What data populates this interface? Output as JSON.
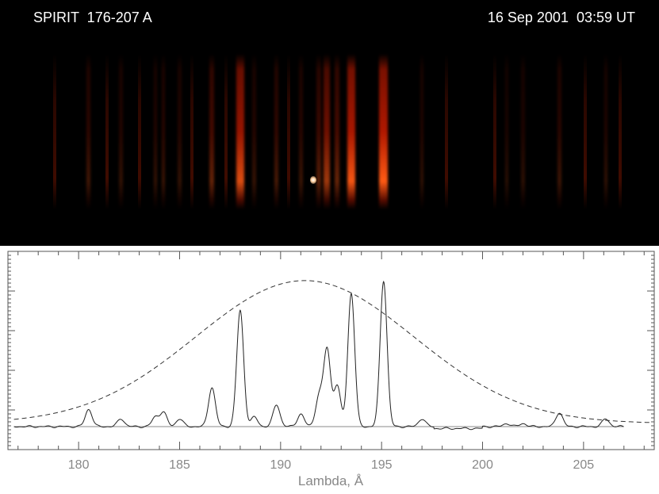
{
  "header": {
    "instrument_label": "SPIRIT  176-207 A",
    "datetime_label": "16 Sep 2001  03:59 UT"
  },
  "chart_data": {
    "type": "line",
    "title": "",
    "xlabel": "Lambda, Å",
    "ylabel": "",
    "xlim": [
      176.5,
      208.5
    ],
    "ylim": [
      0,
      1
    ],
    "xticks": [
      "180",
      "185",
      "190",
      "195",
      "200",
      "205"
    ],
    "grid": false,
    "series": [
      {
        "style": "solid",
        "baseline": 0.0,
        "peaks": [
          {
            "x": 180.5,
            "y": 0.11
          },
          {
            "x": 182.1,
            "y": 0.05
          },
          {
            "x": 183.8,
            "y": 0.06
          },
          {
            "x": 184.2,
            "y": 0.09
          },
          {
            "x": 185.0,
            "y": 0.05
          },
          {
            "x": 186.6,
            "y": 0.25
          },
          {
            "x": 188.0,
            "y": 0.74
          },
          {
            "x": 188.7,
            "y": 0.06
          },
          {
            "x": 189.8,
            "y": 0.14
          },
          {
            "x": 191.0,
            "y": 0.08
          },
          {
            "x": 191.9,
            "y": 0.19
          },
          {
            "x": 192.3,
            "y": 0.49
          },
          {
            "x": 192.8,
            "y": 0.26
          },
          {
            "x": 193.5,
            "y": 0.85
          },
          {
            "x": 195.1,
            "y": 0.93
          },
          {
            "x": 197.0,
            "y": 0.05
          },
          {
            "x": 201.2,
            "y": 0.02
          },
          {
            "x": 202.0,
            "y": 0.02
          },
          {
            "x": 203.8,
            "y": 0.09
          },
          {
            "x": 206.1,
            "y": 0.05
          }
        ]
      },
      {
        "style": "dashed",
        "shape": "gaussian",
        "center": 191.2,
        "peak": 0.93,
        "sigma": 5.4,
        "baseline": 0.02
      },
      {
        "style": "solid-gray",
        "shape": "baseline",
        "y": 0.0
      }
    ]
  },
  "colors": {
    "spectro_bg": "#000000",
    "emission": "#ff3a10",
    "plot_line": "#222222",
    "axis": "#555555"
  }
}
